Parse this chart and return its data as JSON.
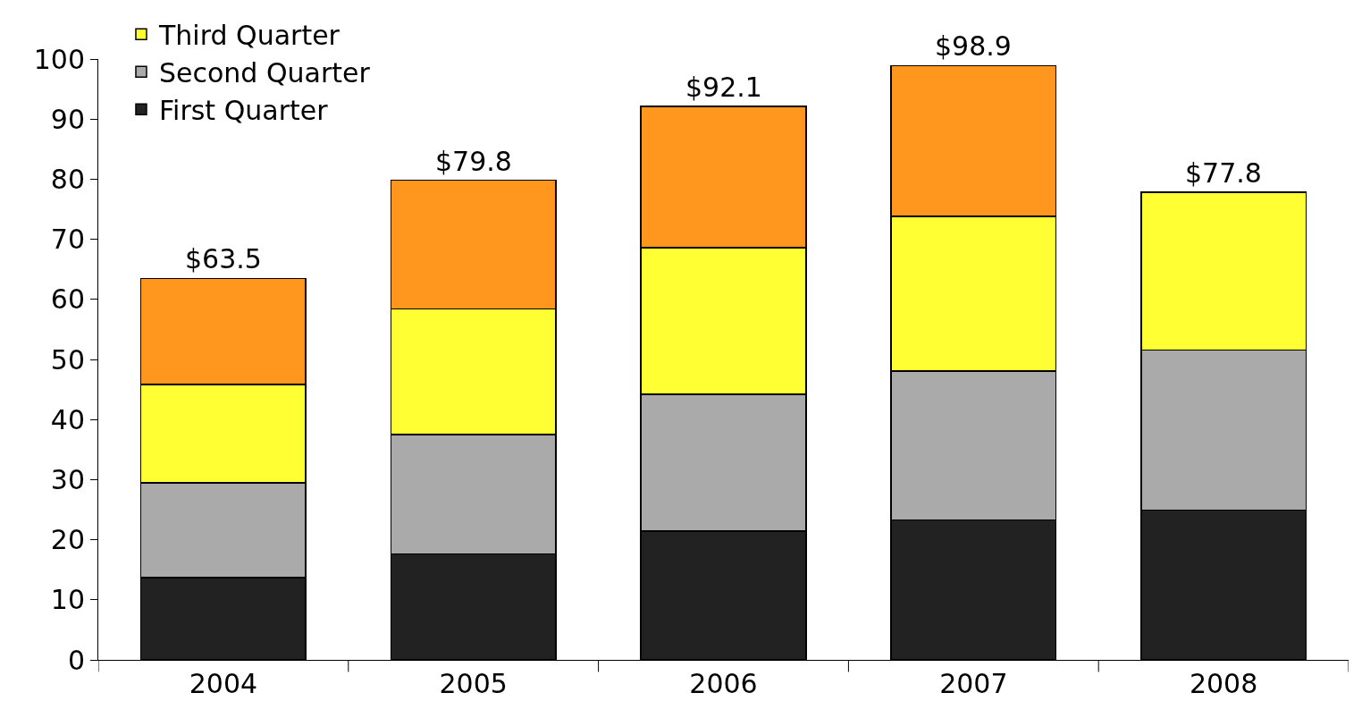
{
  "chart_data": {
    "type": "bar",
    "stacked": true,
    "categories": [
      "2004",
      "2005",
      "2006",
      "2007",
      "2008"
    ],
    "series": [
      {
        "name": "First Quarter",
        "color": "#222222",
        "values": [
          13.7,
          17.6,
          21.4,
          23.3,
          24.9
        ]
      },
      {
        "name": "Second Quarter",
        "color": "#aaaaaa",
        "values": [
          15.8,
          19.9,
          22.8,
          24.8,
          26.7
        ]
      },
      {
        "name": "Third Quarter",
        "color": "#ffff33",
        "values": [
          16.3,
          20.9,
          24.4,
          25.7,
          26.2
        ]
      },
      {
        "color": "#ff961e",
        "values": [
          17.7,
          21.4,
          23.5,
          25.1,
          null
        ]
      }
    ],
    "totals": [
      "$63.5",
      "$79.8",
      "$92.1",
      "$98.9",
      "$77.8"
    ],
    "ylim": [
      0,
      100
    ],
    "yticks": [
      0,
      10,
      20,
      30,
      40,
      50,
      60,
      70,
      80,
      90,
      100
    ],
    "legend": "top left"
  }
}
